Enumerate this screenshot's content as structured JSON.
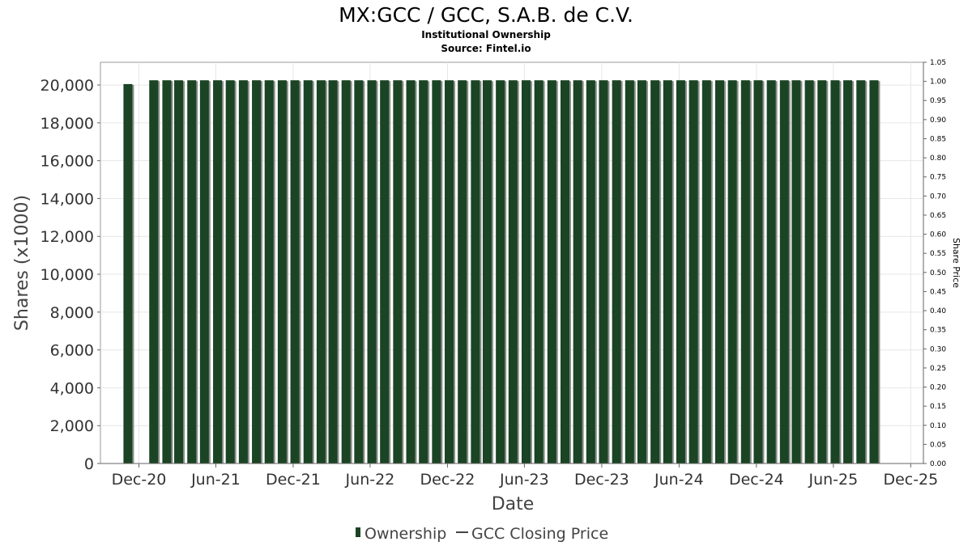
{
  "title": "MX:GCC / GCC, S.A.B. de C.V.",
  "subtitle": "Institutional Ownership",
  "source": "Source: Fintel.io",
  "colors": {
    "bar": "#1b4424",
    "bar_shadow": "#8a8f8a",
    "grid": "#e6e6e6",
    "plot_border": "#999999"
  },
  "chart_data": {
    "type": "bar",
    "xlabel": "Date",
    "ylabel": "Shares (x1000)",
    "ylabel_right": "Share Price",
    "ylim": [
      0,
      21200
    ],
    "ylim_right": [
      0,
      1.05
    ],
    "xlim": [
      "2020-09-01",
      "2025-12-31"
    ],
    "yticks": [
      {
        "value": 0,
        "label": "0"
      },
      {
        "value": 2000,
        "label": "2,000"
      },
      {
        "value": 4000,
        "label": "4,000"
      },
      {
        "value": 6000,
        "label": "6,000"
      },
      {
        "value": 8000,
        "label": "8,000"
      },
      {
        "value": 10000,
        "label": "10,000"
      },
      {
        "value": 12000,
        "label": "12,000"
      },
      {
        "value": 14000,
        "label": "14,000"
      },
      {
        "value": 16000,
        "label": "16,000"
      },
      {
        "value": 18000,
        "label": "18,000"
      },
      {
        "value": 20000,
        "label": "20,000"
      }
    ],
    "yticks_right": [
      "0.00",
      "0.05",
      "0.10",
      "0.15",
      "0.20",
      "0.25",
      "0.30",
      "0.35",
      "0.40",
      "0.45",
      "0.50",
      "0.55",
      "0.60",
      "0.65",
      "0.70",
      "0.75",
      "0.80",
      "0.85",
      "0.90",
      "0.95",
      "1.00",
      "1.05"
    ],
    "xticks": [
      {
        "date": "2020-12-01",
        "label": "Dec-20"
      },
      {
        "date": "2021-06-01",
        "label": "Jun-21"
      },
      {
        "date": "2021-12-01",
        "label": "Dec-21"
      },
      {
        "date": "2022-06-01",
        "label": "Jun-22"
      },
      {
        "date": "2022-12-01",
        "label": "Dec-22"
      },
      {
        "date": "2023-06-01",
        "label": "Jun-23"
      },
      {
        "date": "2023-12-01",
        "label": "Dec-23"
      },
      {
        "date": "2024-06-01",
        "label": "Jun-24"
      },
      {
        "date": "2024-12-01",
        "label": "Dec-24"
      },
      {
        "date": "2025-06-01",
        "label": "Jun-25"
      },
      {
        "date": "2025-12-01",
        "label": "Dec-25"
      }
    ],
    "series": [
      {
        "name": "Ownership",
        "points": [
          {
            "x": "2020-11-05",
            "y": 20050
          },
          {
            "x": "2021-01-05",
            "y": 20250
          },
          {
            "x": "2021-02-05",
            "y": 20250
          },
          {
            "x": "2021-03-05",
            "y": 20250
          },
          {
            "x": "2021-04-05",
            "y": 20250
          },
          {
            "x": "2021-05-05",
            "y": 20250
          },
          {
            "x": "2021-06-05",
            "y": 20250
          },
          {
            "x": "2021-07-05",
            "y": 20250
          },
          {
            "x": "2021-08-05",
            "y": 20250
          },
          {
            "x": "2021-09-05",
            "y": 20250
          },
          {
            "x": "2021-10-05",
            "y": 20250
          },
          {
            "x": "2021-11-05",
            "y": 20250
          },
          {
            "x": "2021-12-05",
            "y": 20250
          },
          {
            "x": "2022-01-05",
            "y": 20250
          },
          {
            "x": "2022-02-05",
            "y": 20250
          },
          {
            "x": "2022-03-05",
            "y": 20250
          },
          {
            "x": "2022-04-05",
            "y": 20250
          },
          {
            "x": "2022-05-05",
            "y": 20250
          },
          {
            "x": "2022-06-05",
            "y": 20250
          },
          {
            "x": "2022-07-05",
            "y": 20250
          },
          {
            "x": "2022-08-05",
            "y": 20250
          },
          {
            "x": "2022-09-05",
            "y": 20250
          },
          {
            "x": "2022-10-05",
            "y": 20250
          },
          {
            "x": "2022-11-05",
            "y": 20250
          },
          {
            "x": "2022-12-05",
            "y": 20250
          },
          {
            "x": "2023-01-05",
            "y": 20250
          },
          {
            "x": "2023-02-05",
            "y": 20250
          },
          {
            "x": "2023-03-05",
            "y": 20250
          },
          {
            "x": "2023-04-05",
            "y": 20250
          },
          {
            "x": "2023-05-05",
            "y": 20250
          },
          {
            "x": "2023-06-05",
            "y": 20250
          },
          {
            "x": "2023-07-05",
            "y": 20250
          },
          {
            "x": "2023-08-05",
            "y": 20250
          },
          {
            "x": "2023-09-05",
            "y": 20250
          },
          {
            "x": "2023-10-05",
            "y": 20250
          },
          {
            "x": "2023-11-05",
            "y": 20250
          },
          {
            "x": "2023-12-05",
            "y": 20250
          },
          {
            "x": "2024-01-05",
            "y": 20250
          },
          {
            "x": "2024-02-05",
            "y": 20250
          },
          {
            "x": "2024-03-05",
            "y": 20250
          },
          {
            "x": "2024-04-05",
            "y": 20250
          },
          {
            "x": "2024-05-05",
            "y": 20250
          },
          {
            "x": "2024-06-05",
            "y": 20250
          },
          {
            "x": "2024-07-05",
            "y": 20250
          },
          {
            "x": "2024-08-05",
            "y": 20250
          },
          {
            "x": "2024-09-05",
            "y": 20250
          },
          {
            "x": "2024-10-05",
            "y": 20250
          },
          {
            "x": "2024-11-05",
            "y": 20250
          },
          {
            "x": "2024-12-05",
            "y": 20250
          },
          {
            "x": "2025-01-05",
            "y": 20250
          },
          {
            "x": "2025-02-05",
            "y": 20250
          },
          {
            "x": "2025-03-05",
            "y": 20250
          },
          {
            "x": "2025-04-05",
            "y": 20250
          },
          {
            "x": "2025-05-05",
            "y": 20250
          },
          {
            "x": "2025-06-05",
            "y": 20250
          },
          {
            "x": "2025-07-05",
            "y": 20250
          },
          {
            "x": "2025-08-05",
            "y": 20250
          },
          {
            "x": "2025-09-05",
            "y": 20250
          }
        ]
      },
      {
        "name": "GCC Closing Price",
        "points": []
      }
    ],
    "grid": true,
    "legend_position": "bottom-center"
  }
}
